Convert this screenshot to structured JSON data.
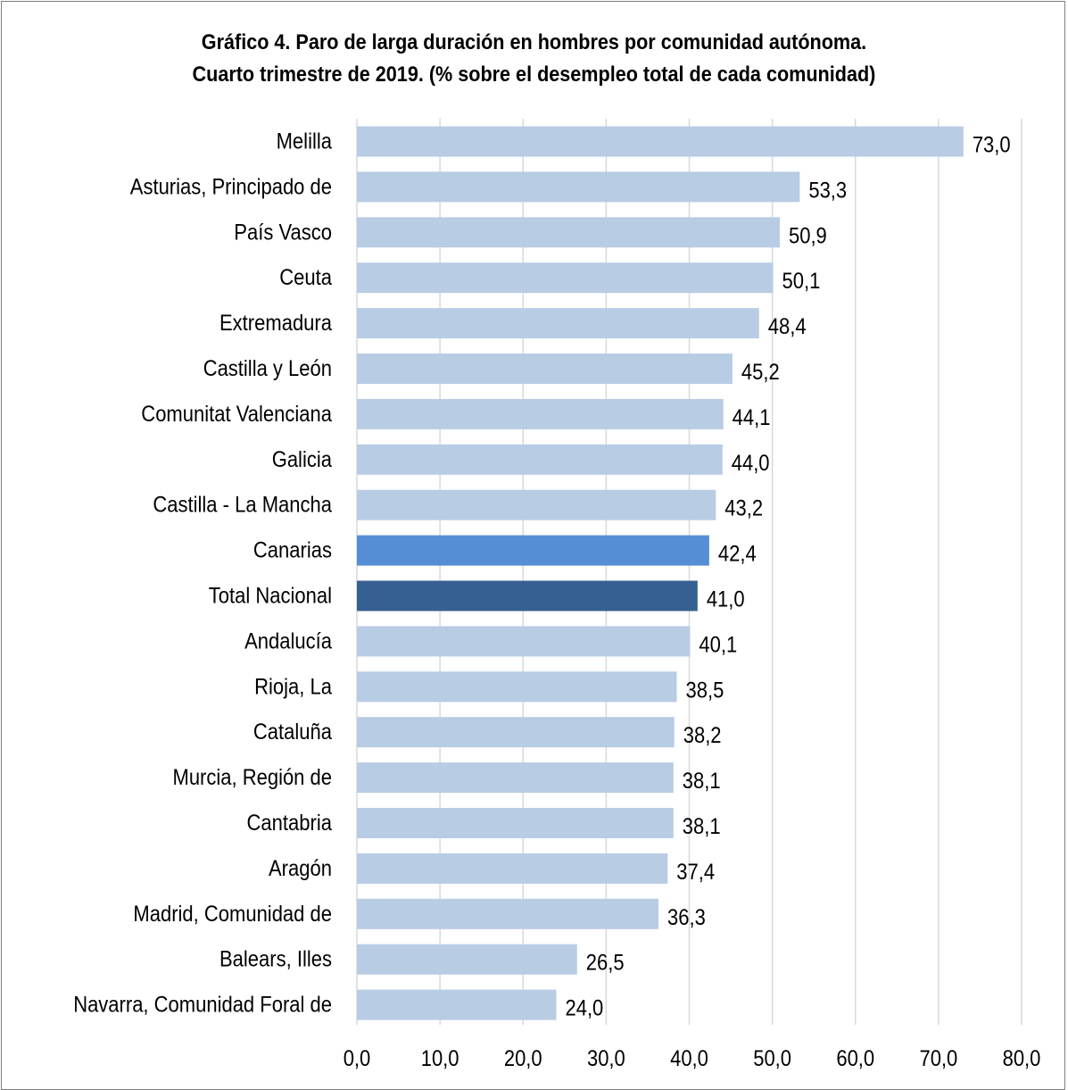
{
  "chart_data": {
    "type": "bar",
    "orientation": "horizontal",
    "title": "Gráfico 4. Paro de larga duración en hombres por comunidad autónoma.",
    "subtitle": "Cuarto trimestre de 2019. (% sobre el desempleo total de cada comunidad)",
    "xlabel": "",
    "ylabel": "",
    "xlim": [
      0,
      80
    ],
    "x_ticks": [
      "0,0",
      "10,0",
      "20,0",
      "30,0",
      "40,0",
      "50,0",
      "60,0",
      "70,0",
      "80,0"
    ],
    "grid": "vertical",
    "legend": "none",
    "categories": [
      "Melilla",
      "Asturias, Principado de",
      "País Vasco",
      "Ceuta",
      "Extremadura",
      "Castilla y León",
      "Comunitat Valenciana",
      "Galicia",
      "Castilla - La Mancha",
      "Canarias",
      "Total Nacional",
      "Andalucía",
      "Rioja, La",
      "Cataluña",
      "Murcia, Región de",
      "Cantabria",
      "Aragón",
      "Madrid, Comunidad de",
      "Balears, Illes",
      "Navarra, Comunidad Foral de"
    ],
    "values": [
      73.0,
      53.3,
      50.9,
      50.1,
      48.4,
      45.2,
      44.1,
      44.0,
      43.2,
      42.4,
      41.0,
      40.1,
      38.5,
      38.2,
      38.1,
      38.1,
      37.4,
      36.3,
      26.5,
      24.0
    ],
    "value_labels": [
      "73,0",
      "53,3",
      "50,9",
      "50,1",
      "48,4",
      "45,2",
      "44,1",
      "44,0",
      "43,2",
      "42,4",
      "41,0",
      "40,1",
      "38,5",
      "38,2",
      "38,1",
      "38,1",
      "37,4",
      "36,3",
      "26,5",
      "24,0"
    ],
    "colors": {
      "default": "#b8cce4",
      "Canarias": "#558ed5",
      "Total Nacional": "#376092",
      "grid": "#d9d9d9",
      "border": "#7f7f7f"
    }
  }
}
